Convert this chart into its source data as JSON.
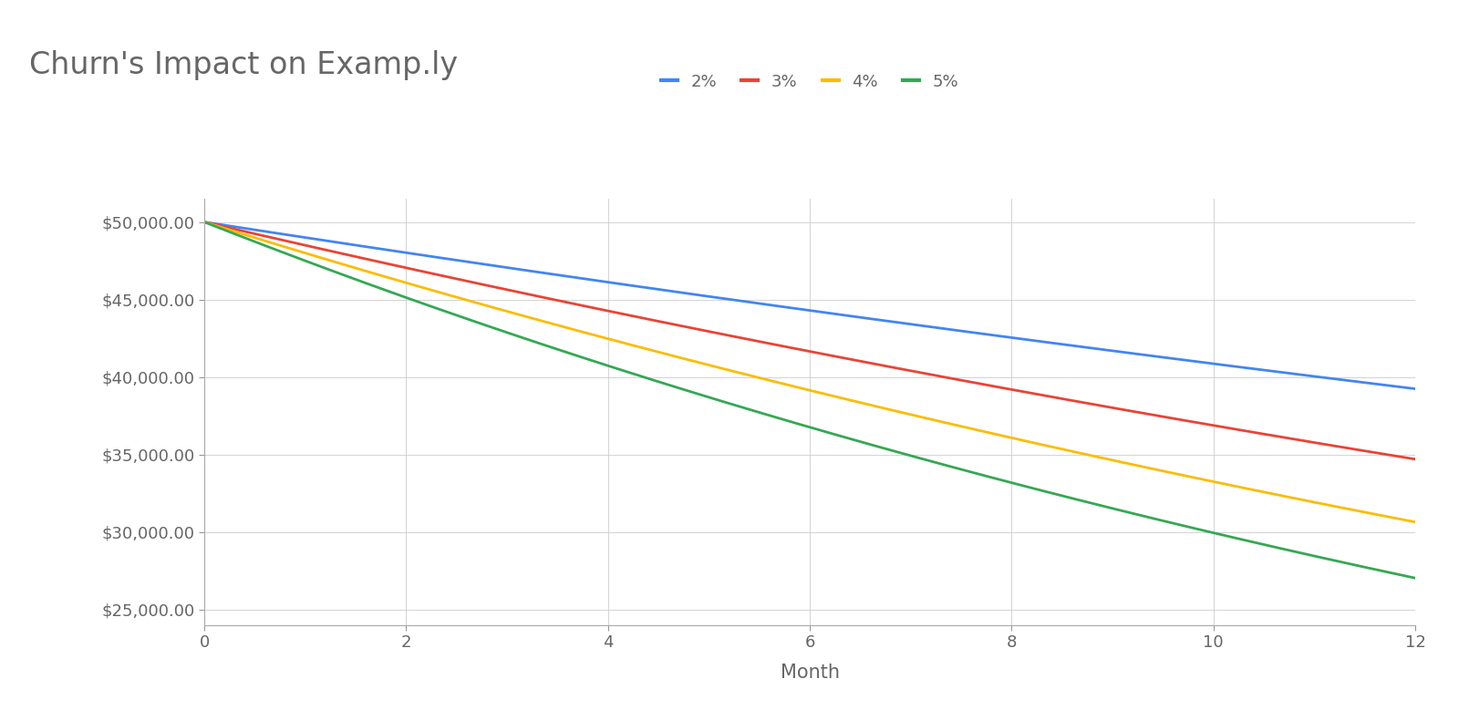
{
  "title": "Churn's Impact on Examp.ly",
  "xlabel": "Month",
  "ylabel": "",
  "initial_value": 50000,
  "churn_rates": [
    0.02,
    0.03,
    0.04,
    0.05
  ],
  "churn_labels": [
    "2%",
    "3%",
    "4%",
    "5%"
  ],
  "line_colors": [
    "#4285F4",
    "#EA4335",
    "#FBBC04",
    "#34A853"
  ],
  "months": 12,
  "ylim": [
    24000,
    51500
  ],
  "yticks": [
    25000,
    30000,
    35000,
    40000,
    45000,
    50000
  ],
  "xticks": [
    0,
    2,
    4,
    6,
    8,
    10,
    12
  ],
  "background_color": "#ffffff",
  "grid_color": "#cccccc",
  "title_fontsize": 24,
  "axis_label_fontsize": 15,
  "tick_fontsize": 13,
  "legend_fontsize": 13,
  "line_width": 2.0,
  "title_color": "#666666",
  "tick_color": "#666666",
  "xlabel_color": "#666666"
}
